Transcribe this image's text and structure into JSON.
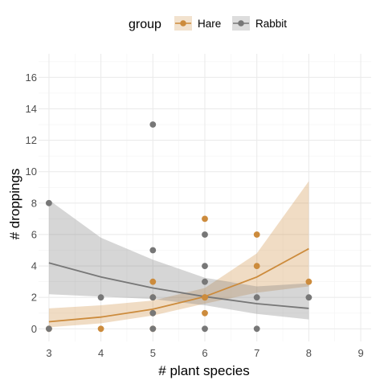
{
  "chart_data": {
    "type": "scatter",
    "xlabel": "# plant species",
    "ylabel": "# droppings",
    "xlim": [
      2.8,
      9.2
    ],
    "ylim": [
      -0.8,
      17.5
    ],
    "x_ticks": [
      3,
      4,
      5,
      6,
      7,
      8,
      9
    ],
    "y_ticks": [
      0,
      2,
      4,
      6,
      8,
      10,
      12,
      14,
      16
    ],
    "grid": true,
    "legend": {
      "title": "group",
      "position": "top",
      "entries": [
        "Hare",
        "Rabbit"
      ]
    },
    "series": [
      {
        "name": "Hare",
        "color": "#CC8B3C",
        "points": [
          [
            3,
            0
          ],
          [
            4,
            0
          ],
          [
            5,
            0
          ],
          [
            5,
            1
          ],
          [
            5,
            2
          ],
          [
            5,
            3
          ],
          [
            6,
            1
          ],
          [
            6,
            2
          ],
          [
            6,
            2
          ],
          [
            6,
            7
          ],
          [
            7,
            4
          ],
          [
            7,
            6
          ],
          [
            8,
            3
          ]
        ],
        "fit": {
          "x": [
            3,
            4,
            5,
            6,
            7,
            8
          ],
          "y": [
            0.45,
            0.75,
            1.25,
            2.05,
            3.3,
            5.1
          ],
          "lower": [
            0.1,
            0.35,
            0.85,
            1.6,
            2.3,
            2.7
          ],
          "upper": [
            1.3,
            1.5,
            1.8,
            2.6,
            4.8,
            9.4
          ]
        }
      },
      {
        "name": "Rabbit",
        "color": "#777777",
        "points": [
          [
            3,
            0
          ],
          [
            3,
            8
          ],
          [
            4,
            2
          ],
          [
            5,
            0
          ],
          [
            5,
            1
          ],
          [
            5,
            2
          ],
          [
            5,
            5
          ],
          [
            5,
            13
          ],
          [
            6,
            0
          ],
          [
            6,
            3
          ],
          [
            6,
            4
          ],
          [
            6,
            6
          ],
          [
            7,
            0
          ],
          [
            7,
            2
          ],
          [
            8,
            2
          ]
        ],
        "fit": {
          "x": [
            3,
            4,
            5,
            6,
            7,
            8
          ],
          "y": [
            4.2,
            3.3,
            2.6,
            2.05,
            1.6,
            1.3
          ],
          "lower": [
            2.2,
            2.05,
            1.9,
            1.5,
            0.95,
            0.6
          ],
          "upper": [
            8.2,
            5.8,
            4.4,
            3.25,
            2.7,
            2.9
          ]
        }
      }
    ]
  }
}
